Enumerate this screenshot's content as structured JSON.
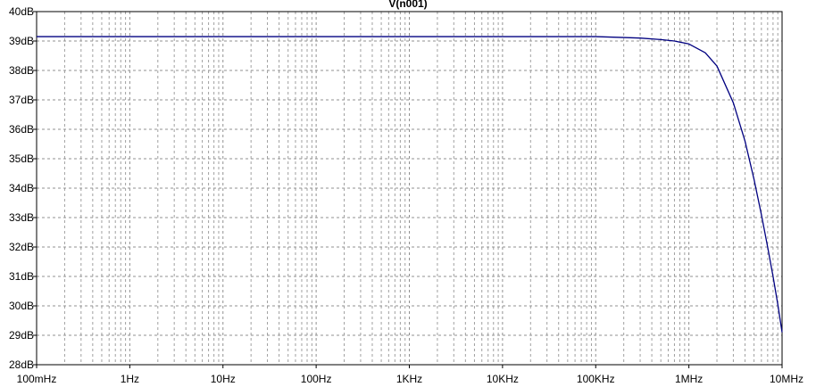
{
  "chart_data": {
    "type": "line",
    "title": "V(n001)",
    "xlabel": "",
    "ylabel": "",
    "x_scale": "log",
    "xlim": [
      0.1,
      10000000
    ],
    "ylim": [
      28,
      40
    ],
    "grid": true,
    "x_ticks": [
      {
        "value": 0.1,
        "label": "100mHz"
      },
      {
        "value": 1,
        "label": "1Hz"
      },
      {
        "value": 10,
        "label": "10Hz"
      },
      {
        "value": 100,
        "label": "100Hz"
      },
      {
        "value": 1000,
        "label": "1KHz"
      },
      {
        "value": 10000,
        "label": "10KHz"
      },
      {
        "value": 100000,
        "label": "100KHz"
      },
      {
        "value": 1000000,
        "label": "1MHz"
      },
      {
        "value": 10000000,
        "label": "10MHz"
      }
    ],
    "y_ticks": [
      {
        "value": 40,
        "label": "40dB"
      },
      {
        "value": 39,
        "label": "39dB"
      },
      {
        "value": 38,
        "label": "38dB"
      },
      {
        "value": 37,
        "label": "37dB"
      },
      {
        "value": 36,
        "label": "36dB"
      },
      {
        "value": 35,
        "label": "35dB"
      },
      {
        "value": 34,
        "label": "34dB"
      },
      {
        "value": 33,
        "label": "33dB"
      },
      {
        "value": 32,
        "label": "32dB"
      },
      {
        "value": 31,
        "label": "31dB"
      },
      {
        "value": 30,
        "label": "30dB"
      },
      {
        "value": 29,
        "label": "29dB"
      },
      {
        "value": 28,
        "label": "28dB"
      }
    ],
    "series": [
      {
        "color": "#000080",
        "x": [
          0.1,
          1,
          10,
          100,
          1000,
          10000,
          100000,
          200000,
          300000,
          500000,
          700000,
          1000000,
          1500000,
          2000000,
          3000000,
          4000000,
          5000000,
          6000000,
          7000000,
          8000000,
          9000000,
          10000000
        ],
        "y": [
          39.15,
          39.15,
          39.15,
          39.15,
          39.15,
          39.15,
          39.15,
          39.12,
          39.1,
          39.05,
          39.0,
          38.9,
          38.6,
          38.15,
          36.9,
          35.6,
          34.3,
          33.1,
          32.0,
          31.0,
          30.05,
          29.1
        ]
      }
    ]
  }
}
